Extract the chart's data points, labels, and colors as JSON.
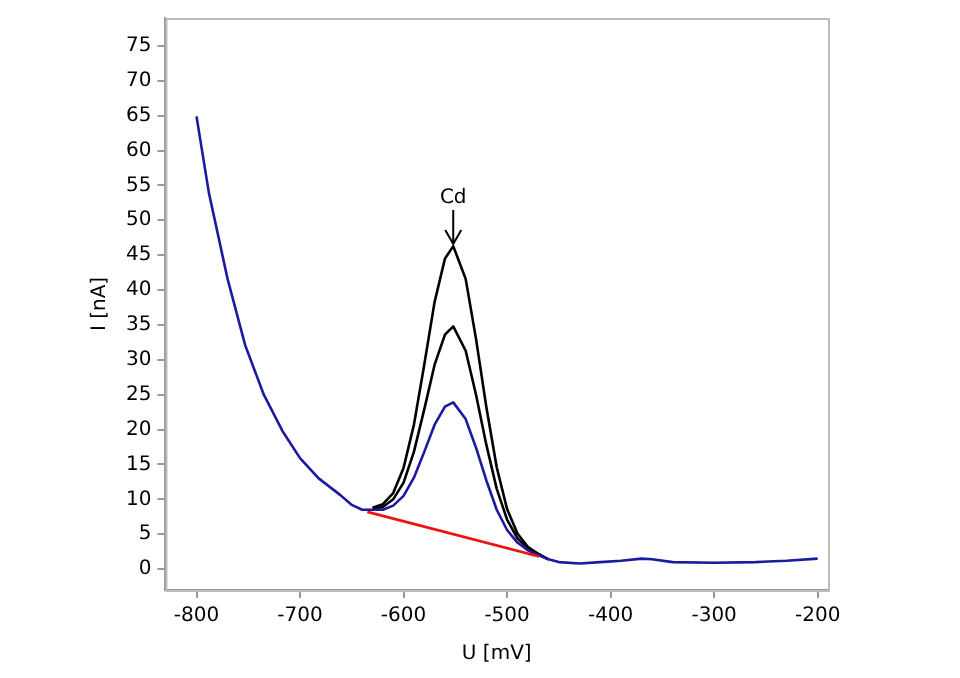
{
  "chart_data": {
    "type": "line",
    "xlabel": "U [mV]",
    "ylabel": "I [nA]",
    "xlim": [
      -830,
      -190
    ],
    "ylim": [
      -3,
      79
    ],
    "xticks": [
      -800,
      -700,
      -600,
      -500,
      -400,
      -300,
      -200
    ],
    "yticks": [
      0,
      5,
      10,
      15,
      20,
      25,
      30,
      35,
      40,
      45,
      50,
      55,
      60,
      65,
      70,
      75
    ],
    "grid": false,
    "legend": false,
    "marker": "none",
    "line_style": "solid",
    "annotations": [
      {
        "text": "Cd",
        "x": -552,
        "y": 46.3
      }
    ],
    "series": [
      {
        "color": "#000000",
        "x": [
          -630,
          -620,
          -610,
          -600,
          -590,
          -580,
          -570,
          -560,
          -552,
          -540,
          -530,
          -520,
          -510,
          -500,
          -490,
          -480,
          -470,
          -460
        ],
        "values": [
          8.8,
          9.3,
          10.9,
          14.5,
          20.7,
          29.3,
          38.3,
          44.5,
          46.3,
          41.6,
          33,
          23.2,
          14.6,
          8.6,
          5.1,
          3.2,
          2.2,
          1.4
        ]
      },
      {
        "color": "#000000",
        "x": [
          -630,
          -620,
          -610,
          -600,
          -590,
          -580,
          -570,
          -560,
          -552,
          -540,
          -530,
          -520,
          -510,
          -500,
          -490,
          -480,
          -470,
          -460
        ],
        "values": [
          8.6,
          8.9,
          10,
          12.4,
          16.8,
          22.9,
          29.3,
          33.6,
          34.8,
          31.3,
          25,
          17.8,
          11.5,
          7.1,
          4.4,
          3,
          2.1,
          1.4
        ]
      },
      {
        "color": "#1a1aa0",
        "x": [
          -800,
          -788,
          -770,
          -753,
          -735,
          -717,
          -700,
          -682,
          -661,
          -650,
          -640,
          -630,
          -620,
          -610,
          -600,
          -590,
          -580,
          -570,
          -560,
          -552,
          -540,
          -530,
          -520,
          -510,
          -500,
          -490,
          -480,
          -470,
          -460,
          -450,
          -430,
          -410,
          -390,
          -370,
          -360,
          -340,
          -300,
          -260,
          -230,
          -200
        ],
        "values": [
          64.9,
          53.9,
          41.6,
          32.1,
          25,
          19.8,
          15.9,
          13,
          10.6,
          9.2,
          8.5,
          8.5,
          8.5,
          9.1,
          10.5,
          13.1,
          16.8,
          20.7,
          23.3,
          23.9,
          21.5,
          17.4,
          12.7,
          8.5,
          5.6,
          3.8,
          2.7,
          2,
          1.4,
          1,
          0.8,
          1,
          1.2,
          1.5,
          1.4,
          1,
          0.9,
          1,
          1.2,
          1.5
        ]
      },
      {
        "color": "#ee1111",
        "x": [
          -635,
          -469
        ],
        "values": [
          8.2,
          1.8
        ]
      }
    ]
  }
}
